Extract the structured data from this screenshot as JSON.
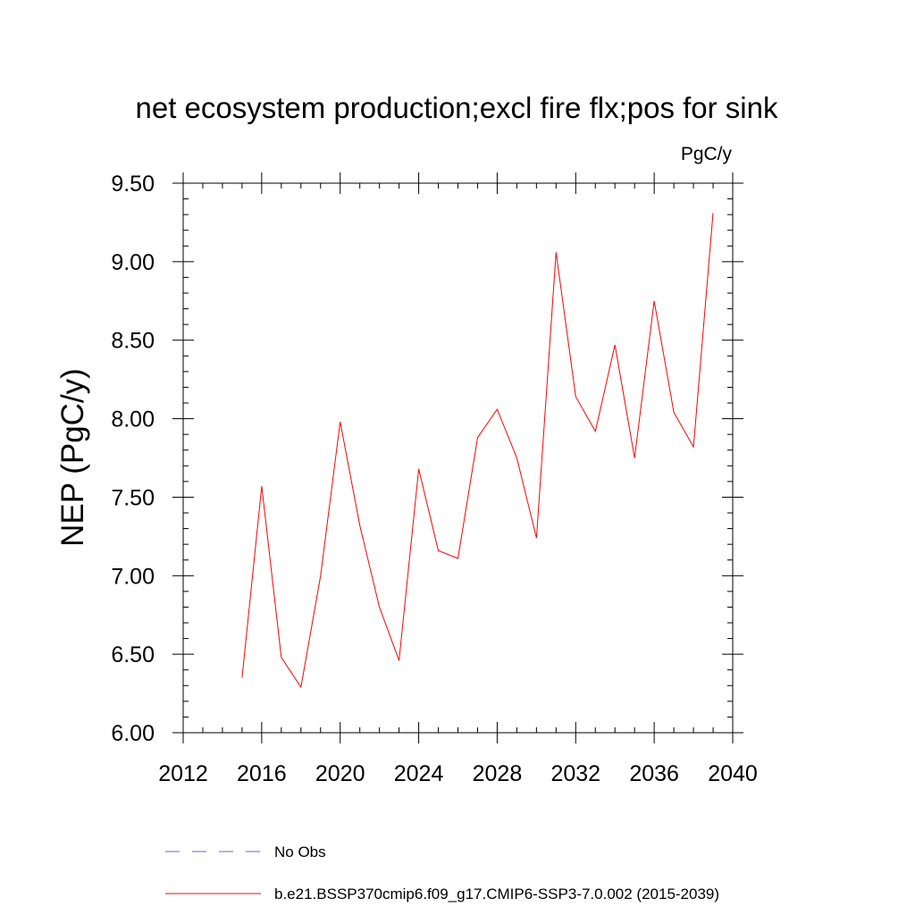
{
  "chart_data": {
    "type": "line",
    "title": "net ecosystem production;excl fire flx;pos for sink",
    "units": "PgC/y",
    "xlabel": "",
    "ylabel": "NEP  (PgC/y)",
    "xlim": [
      2012,
      2040
    ],
    "ylim": [
      6.0,
      9.5
    ],
    "x_ticks": [
      "2012",
      "2016",
      "2020",
      "2024",
      "2028",
      "2032",
      "2036",
      "2040"
    ],
    "y_ticks": [
      "6.00",
      "6.50",
      "7.00",
      "7.50",
      "8.00",
      "8.50",
      "9.00",
      "9.50"
    ],
    "grid": false,
    "series": [
      {
        "name": "b.e21.BSSP370cmip6.f09_g17.CMIP6-SSP3-7.0.002 (2015-2039)",
        "color": "#ff0000",
        "x": [
          2015,
          2016,
          2017,
          2018,
          2019,
          2020,
          2021,
          2022,
          2023,
          2024,
          2025,
          2026,
          2027,
          2028,
          2029,
          2030,
          2031,
          2032,
          2033,
          2034,
          2035,
          2036,
          2037,
          2038,
          2039
        ],
        "y": [
          6.35,
          7.57,
          6.48,
          6.29,
          7.0,
          7.98,
          7.32,
          6.8,
          6.46,
          7.68,
          7.16,
          7.11,
          7.88,
          8.06,
          7.75,
          7.24,
          9.06,
          8.14,
          7.92,
          8.47,
          7.75,
          8.75,
          8.04,
          7.82,
          9.31
        ]
      }
    ],
    "legend": [
      {
        "label": "No Obs",
        "style": "dashed",
        "color": "#6666cc"
      },
      {
        "label": "b.e21.BSSP370cmip6.f09_g17.CMIP6-SSP3-7.0.002 (2015-2039)",
        "style": "solid",
        "color": "#ff0000"
      }
    ],
    "legend_position": "bottom"
  }
}
